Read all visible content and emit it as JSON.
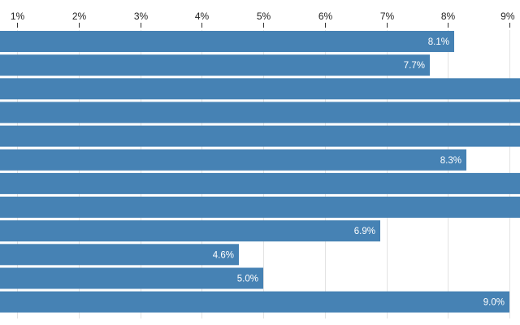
{
  "chart_data": {
    "type": "bar",
    "orientation": "horizontal",
    "x_ticks": [
      "1%",
      "2%",
      "3%",
      "4%",
      "5%",
      "6%",
      "7%",
      "8%",
      "9%"
    ],
    "xlim": [
      0.72,
      9.17
    ],
    "grid": true,
    "bar_color": "#4682b4",
    "values": [
      8.1,
      7.7,
      null,
      null,
      null,
      8.3,
      null,
      null,
      6.9,
      4.6,
      5.0,
      9.0
    ],
    "labels": [
      "8.1%",
      "7.7%",
      "",
      "",
      "",
      "8.3%",
      "",
      "",
      "6.9%",
      "4.6%",
      "5.0%",
      "9.0%"
    ],
    "note": "Bars 3, 4, 5, 7 and 8 extend past 9% and are clipped; their values are not shown."
  }
}
